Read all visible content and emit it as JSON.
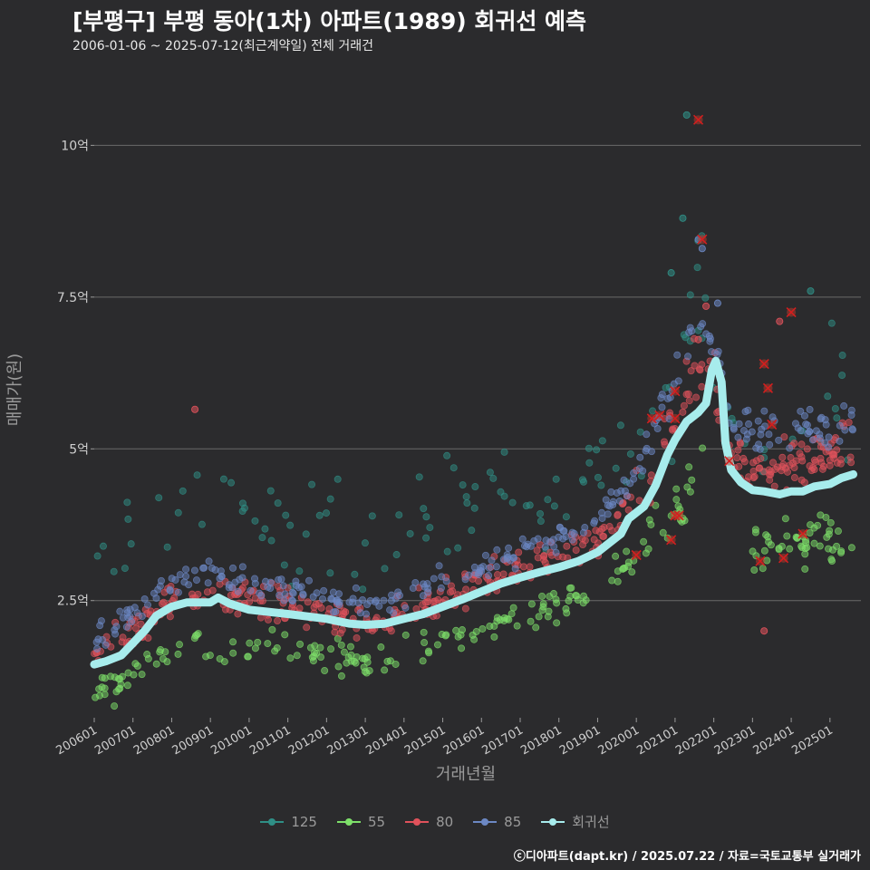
{
  "chart_data": {
    "type": "scatter",
    "title": "[부평구] 부평 동아(1차) 아파트(1989) 회귀선 예측",
    "subtitle": "2006-01-06 ~ 2025-07-12(최근계약일) 전체 거래건",
    "xlabel": "거래년월",
    "ylabel": "매매가(원)",
    "xlim": [
      2006.0,
      2025.8
    ],
    "ylim": [
      0.6,
      11.2
    ],
    "y_ticks": [
      {
        "value": 2.5,
        "label": "2.5억"
      },
      {
        "value": 5,
        "label": "5억"
      },
      {
        "value": 7.5,
        "label": "7.5억"
      },
      {
        "value": 10,
        "label": "10억"
      }
    ],
    "x_ticks": [
      {
        "value": 2006,
        "label": "200601"
      },
      {
        "value": 2007,
        "label": "200701"
      },
      {
        "value": 2008,
        "label": "200801"
      },
      {
        "value": 2009,
        "label": "200901"
      },
      {
        "value": 2010,
        "label": "201001"
      },
      {
        "value": 2011,
        "label": "201101"
      },
      {
        "value": 2012,
        "label": "201201"
      },
      {
        "value": 2013,
        "label": "201301"
      },
      {
        "value": 2014,
        "label": "201401"
      },
      {
        "value": 2015,
        "label": "201501"
      },
      {
        "value": 2016,
        "label": "201601"
      },
      {
        "value": 2017,
        "label": "201701"
      },
      {
        "value": 2018,
        "label": "201801"
      },
      {
        "value": 2019,
        "label": "201901"
      },
      {
        "value": 2020,
        "label": "202001"
      },
      {
        "value": 2021,
        "label": "202101"
      },
      {
        "value": 2022,
        "label": "202201"
      },
      {
        "value": 2023,
        "label": "202301"
      },
      {
        "value": 2024,
        "label": "202401"
      },
      {
        "value": 2025,
        "label": "202501"
      }
    ],
    "series": [
      {
        "name": "125",
        "color": "#2f8f86",
        "trend": [
          [
            2006.0,
            2.8
          ],
          [
            2007.0,
            3.6
          ],
          [
            2008.0,
            4.1
          ],
          [
            2009.0,
            3.9
          ],
          [
            2010.0,
            3.7
          ],
          [
            2011.0,
            3.8
          ],
          [
            2012.0,
            3.5
          ],
          [
            2013.0,
            3.4
          ],
          [
            2014.0,
            3.4
          ],
          [
            2015.0,
            3.8
          ],
          [
            2016.0,
            4.1
          ],
          [
            2017.0,
            4.2
          ],
          [
            2018.0,
            4.3
          ],
          [
            2019.0,
            4.6
          ],
          [
            2020.0,
            5.2
          ],
          [
            2021.0,
            6.5
          ],
          [
            2021.5,
            7.8
          ],
          [
            2022.0,
            7.2
          ],
          [
            2022.3,
            6.0
          ],
          [
            2023.0,
            6.2
          ],
          [
            2023.5,
            5.3
          ],
          [
            2024.0,
            5.6
          ],
          [
            2025.0,
            5.4
          ],
          [
            2025.5,
            5.6
          ]
        ],
        "spread": 0.45,
        "count": 120,
        "extra": [
          [
            2021.3,
            10.5
          ],
          [
            2021.2,
            8.8
          ],
          [
            2020.9,
            7.9
          ],
          [
            2024.5,
            7.6
          ]
        ]
      },
      {
        "name": "55",
        "color": "#7ee06a",
        "trend": [
          [
            2006.0,
            0.95
          ],
          [
            2006.5,
            1.05
          ],
          [
            2007.0,
            1.3
          ],
          [
            2008.0,
            1.75
          ],
          [
            2009.0,
            1.8
          ],
          [
            2010.0,
            1.75
          ],
          [
            2011.0,
            1.7
          ],
          [
            2012.0,
            1.7
          ],
          [
            2013.0,
            1.5
          ],
          [
            2014.0,
            1.6
          ],
          [
            2015.0,
            1.85
          ],
          [
            2016.0,
            2.05
          ],
          [
            2017.0,
            2.2
          ],
          [
            2018.0,
            2.45
          ],
          [
            2019.0,
            2.8
          ],
          [
            2020.0,
            3.2
          ],
          [
            2020.5,
            3.6
          ],
          [
            2021.0,
            3.9
          ],
          [
            2021.3,
            4.2
          ],
          [
            2022.0,
            5.5
          ]
        ],
        "segments": [
          [
            2006.0,
            2022.0
          ],
          [
            2023.0,
            2025.6
          ]
        ],
        "trend2": [
          [
            2023.0,
            3.2
          ],
          [
            2023.5,
            3.4
          ],
          [
            2024.0,
            3.5
          ],
          [
            2025.0,
            3.6
          ],
          [
            2025.6,
            3.7
          ]
        ],
        "spread": 0.14,
        "count": 240,
        "extra": []
      },
      {
        "name": "80",
        "color": "#e0525b",
        "trend": [
          [
            2006.0,
            1.55
          ],
          [
            2007.0,
            2.0
          ],
          [
            2008.0,
            2.45
          ],
          [
            2009.0,
            2.55
          ],
          [
            2010.0,
            2.5
          ],
          [
            2011.0,
            2.4
          ],
          [
            2012.0,
            2.3
          ],
          [
            2013.0,
            2.1
          ],
          [
            2014.0,
            2.25
          ],
          [
            2015.0,
            2.55
          ],
          [
            2016.0,
            2.8
          ],
          [
            2017.0,
            3.05
          ],
          [
            2018.0,
            3.2
          ],
          [
            2019.0,
            3.5
          ],
          [
            2020.0,
            4.2
          ],
          [
            2020.5,
            4.8
          ],
          [
            2021.0,
            5.6
          ],
          [
            2021.5,
            6.3
          ],
          [
            2022.0,
            6.3
          ],
          [
            2022.3,
            5.2
          ],
          [
            2023.0,
            4.6
          ],
          [
            2024.0,
            4.8
          ],
          [
            2025.0,
            4.9
          ],
          [
            2025.6,
            5.1
          ]
        ],
        "spread": 0.14,
        "count": 420,
        "extra": [
          [
            2008.6,
            5.65
          ],
          [
            2021.8,
            7.35
          ],
          [
            2023.3,
            2.0
          ],
          [
            2023.7,
            7.1
          ],
          [
            2021.6,
            6.8
          ]
        ]
      },
      {
        "name": "85",
        "color": "#6c88c4",
        "trend": [
          [
            2006.0,
            1.8
          ],
          [
            2007.0,
            2.3
          ],
          [
            2008.0,
            2.85
          ],
          [
            2009.0,
            2.95
          ],
          [
            2010.0,
            2.8
          ],
          [
            2011.0,
            2.7
          ],
          [
            2012.0,
            2.55
          ],
          [
            2013.0,
            2.4
          ],
          [
            2014.0,
            2.55
          ],
          [
            2015.0,
            2.85
          ],
          [
            2016.0,
            3.05
          ],
          [
            2017.0,
            3.3
          ],
          [
            2018.0,
            3.55
          ],
          [
            2019.0,
            3.85
          ],
          [
            2020.0,
            4.6
          ],
          [
            2020.5,
            5.4
          ],
          [
            2021.0,
            6.1
          ],
          [
            2021.5,
            7.2
          ],
          [
            2022.0,
            6.8
          ],
          [
            2022.3,
            5.6
          ],
          [
            2023.0,
            5.3
          ],
          [
            2024.0,
            5.4
          ],
          [
            2025.0,
            5.3
          ],
          [
            2025.6,
            5.5
          ]
        ],
        "spread": 0.12,
        "count": 300,
        "extra": [
          [
            2021.6,
            8.45
          ],
          [
            2021.7,
            8.3
          ],
          [
            2022.1,
            7.4
          ]
        ]
      }
    ],
    "regression": {
      "name": "회귀선",
      "color": "#a7ecec",
      "points": [
        [
          2006.0,
          1.45
        ],
        [
          2006.3,
          1.5
        ],
        [
          2006.7,
          1.6
        ],
        [
          2007.0,
          1.8
        ],
        [
          2007.3,
          2.0
        ],
        [
          2007.6,
          2.25
        ],
        [
          2008.0,
          2.4
        ],
        [
          2008.4,
          2.47
        ],
        [
          2008.8,
          2.47
        ],
        [
          2009.0,
          2.47
        ],
        [
          2009.2,
          2.55
        ],
        [
          2009.5,
          2.45
        ],
        [
          2010.0,
          2.35
        ],
        [
          2011.0,
          2.28
        ],
        [
          2012.0,
          2.2
        ],
        [
          2012.6,
          2.12
        ],
        [
          2013.0,
          2.1
        ],
        [
          2013.5,
          2.12
        ],
        [
          2014.0,
          2.2
        ],
        [
          2014.5,
          2.28
        ],
        [
          2015.0,
          2.4
        ],
        [
          2015.5,
          2.52
        ],
        [
          2016.0,
          2.65
        ],
        [
          2016.5,
          2.78
        ],
        [
          2017.0,
          2.88
        ],
        [
          2017.5,
          2.97
        ],
        [
          2018.0,
          3.05
        ],
        [
          2018.5,
          3.15
        ],
        [
          2019.0,
          3.3
        ],
        [
          2019.3,
          3.45
        ],
        [
          2019.6,
          3.6
        ],
        [
          2019.8,
          3.85
        ],
        [
          2020.0,
          3.95
        ],
        [
          2020.2,
          4.05
        ],
        [
          2020.5,
          4.4
        ],
        [
          2020.8,
          4.9
        ],
        [
          2021.0,
          5.15
        ],
        [
          2021.3,
          5.45
        ],
        [
          2021.6,
          5.6
        ],
        [
          2021.8,
          5.75
        ],
        [
          2021.95,
          6.3
        ],
        [
          2022.05,
          6.45
        ],
        [
          2022.2,
          6.1
        ],
        [
          2022.3,
          5.1
        ],
        [
          2022.45,
          4.65
        ],
        [
          2022.7,
          4.45
        ],
        [
          2023.0,
          4.32
        ],
        [
          2023.3,
          4.3
        ],
        [
          2023.7,
          4.25
        ],
        [
          2024.0,
          4.3
        ],
        [
          2024.3,
          4.3
        ],
        [
          2024.6,
          4.38
        ],
        [
          2025.0,
          4.42
        ],
        [
          2025.3,
          4.52
        ],
        [
          2025.6,
          4.58
        ]
      ]
    },
    "highlights": [
      [
        2020.0,
        3.25
      ],
      [
        2020.4,
        5.5
      ],
      [
        2020.6,
        5.55
      ],
      [
        2020.9,
        3.5
      ],
      [
        2021.0,
        3.9
      ],
      [
        2021.1,
        3.9
      ],
      [
        2021.0,
        5.95
      ],
      [
        2021.0,
        5.5
      ],
      [
        2021.6,
        10.42
      ],
      [
        2021.7,
        8.45
      ],
      [
        2022.4,
        4.8
      ],
      [
        2023.2,
        3.15
      ],
      [
        2023.3,
        6.4
      ],
      [
        2023.4,
        6.0
      ],
      [
        2023.5,
        5.4
      ],
      [
        2023.8,
        3.2
      ],
      [
        2024.0,
        7.25
      ],
      [
        2024.3,
        3.6
      ]
    ],
    "legend": [
      {
        "label": "125",
        "color": "#2f8f86"
      },
      {
        "label": "55",
        "color": "#7ee06a"
      },
      {
        "label": "80",
        "color": "#e0525b"
      },
      {
        "label": "85",
        "color": "#6c88c4"
      },
      {
        "label": "회귀선",
        "color": "#a7ecec"
      }
    ],
    "legend_position": "bottom",
    "grid": true,
    "caption": "ⓒ디아파트(dapt.kr) / 2025.07.22 / 자료=국토교통부 실거래가"
  }
}
